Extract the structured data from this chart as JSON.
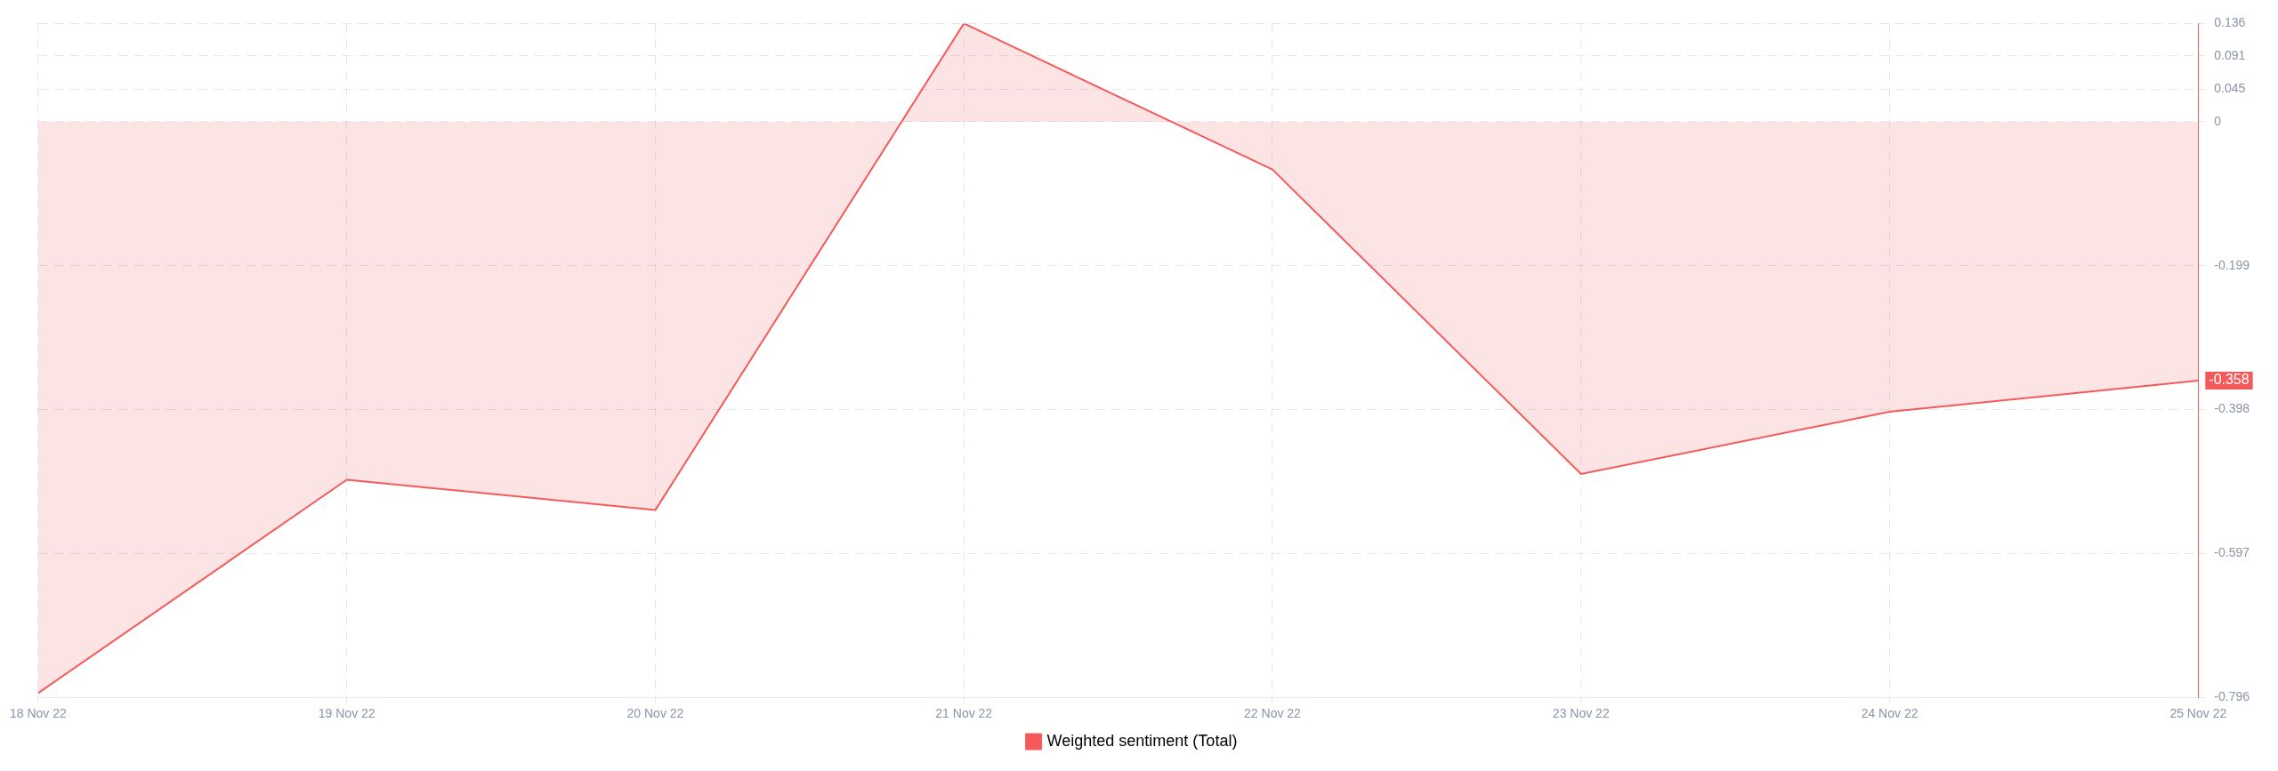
{
  "chart_data": {
    "type": "area",
    "categories": [
      "18 Nov 22",
      "19 Nov 22",
      "20 Nov 22",
      "21 Nov 22",
      "22 Nov 22",
      "23 Nov 22",
      "24 Nov 22",
      "25 Nov 22"
    ],
    "series": [
      {
        "name": "Weighted sentiment (Total)",
        "color": "#f55a5a",
        "values": [
          -0.79,
          -0.495,
          -0.537,
          0.136,
          -0.066,
          -0.487,
          -0.401,
          -0.358
        ]
      }
    ],
    "ylim": [
      -0.796,
      0.136
    ],
    "yticks": [
      0.136,
      0.091,
      0.045,
      0,
      -0.199,
      -0.398,
      -0.597,
      -0.796
    ],
    "annotations": [
      {
        "text": "-0.358",
        "x": "25 Nov 22",
        "y": -0.358
      }
    ],
    "grid": true,
    "legend": "bottom"
  }
}
